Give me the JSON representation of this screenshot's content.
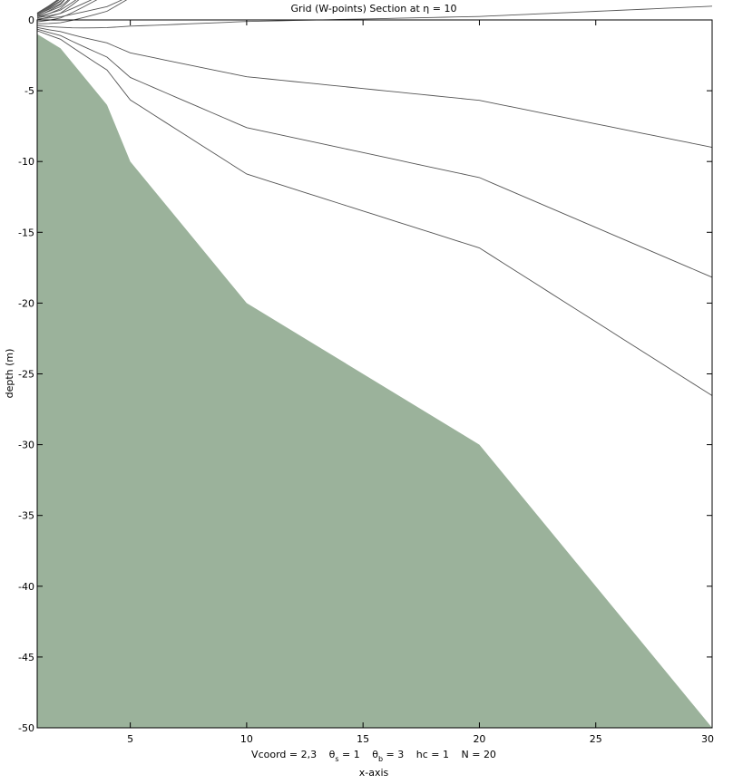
{
  "chart_data": {
    "type": "line",
    "title": "Grid (W-points) Section at  η = 10",
    "xlabel": "x-axis",
    "ylabel": "depth  (m)",
    "parameters": "Vcoord = 2,3   θs = 1   θb = 3   hc  = 1   N = 20",
    "params_parts": {
      "vcoord": "Vcoord = 2,3",
      "theta_s_sym": "θ",
      "theta_s_sub": "s",
      "theta_s_val": " = 1",
      "theta_b_sym": "θ",
      "theta_b_sub": "b",
      "theta_b_val": " = 3",
      "hc": "hc  = 1",
      "n": "N = 20"
    },
    "xlim": [
      1,
      30
    ],
    "ylim": [
      -50,
      0
    ],
    "xticks": [
      5,
      10,
      15,
      20,
      25,
      30
    ],
    "yticks": [
      0,
      -5,
      -10,
      -15,
      -20,
      -25,
      -30,
      -35,
      -40,
      -45,
      -50
    ],
    "grid": false,
    "bathymetry": {
      "x": [
        1,
        2,
        4,
        5,
        10,
        20,
        30
      ],
      "depth": [
        -1,
        -2,
        -6,
        -10,
        -20,
        -30,
        -50
      ]
    },
    "n_levels": 20,
    "theta_s": 1,
    "theta_b": 3,
    "hc": 1,
    "colors": {
      "land": "#9bb29b",
      "line": "#555555",
      "frame": "#000000"
    }
  }
}
